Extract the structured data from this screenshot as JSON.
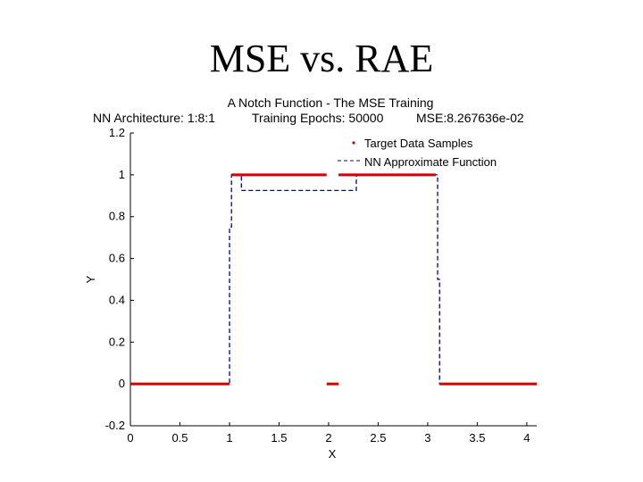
{
  "slide": {
    "title": "MSE vs. RAE"
  },
  "chart_data": {
    "type": "line",
    "title": "A Notch Function - The MSE Training",
    "subtitle": {
      "architecture": "NN Architecture: 1:8:1",
      "epochs": "Training Epochs: 50000",
      "mse": "MSE:8.267636e-02"
    },
    "xlabel": "X",
    "ylabel": "Y",
    "xlim": [
      0,
      4.1
    ],
    "ylim": [
      -0.2,
      1.2
    ],
    "xticks": [
      0,
      0.5,
      1,
      1.5,
      2,
      2.5,
      3,
      3.5,
      4
    ],
    "xtick_labels": [
      "0",
      "0.5",
      "1",
      "1.5",
      "2",
      "2.5",
      "3",
      "3.5",
      "4"
    ],
    "yticks": [
      -0.2,
      0,
      0.2,
      0.4,
      0.6,
      0.8,
      1,
      1.2
    ],
    "ytick_labels": [
      "-0.2",
      "0",
      "0.2",
      "0.4",
      "0.6",
      "0.8",
      "1",
      "1.2"
    ],
    "legend": {
      "position": "top-right",
      "target_label": "Target Data Samples",
      "nn_label": "NN Approximate Function"
    },
    "series": [
      {
        "name": "Target Data Samples",
        "color": "#d40000",
        "style": "points",
        "segments": [
          {
            "x": [
              0,
              1
            ],
            "y": 0
          },
          {
            "x": [
              1.02,
              1.98
            ],
            "y": 1
          },
          {
            "x": [
              2.1,
              3.08
            ],
            "y": 1
          },
          {
            "x": [
              1.98,
              2.1
            ],
            "y": 0
          },
          {
            "x": [
              3.12,
              4.1
            ],
            "y": 0
          }
        ]
      },
      {
        "name": "NN Approximate Function",
        "color": "#0000a8",
        "style": "dashed",
        "x": [
          0,
          1.0,
          1.0,
          1.02,
          1.02,
          1.12,
          1.12,
          2.28,
          2.28,
          3.1,
          3.1,
          3.12,
          3.12,
          4.1
        ],
        "y": [
          0,
          0,
          0.75,
          0.75,
          1.0,
          1.0,
          0.925,
          0.925,
          1.0,
          1.0,
          0.5,
          0.5,
          0,
          0
        ]
      }
    ]
  }
}
